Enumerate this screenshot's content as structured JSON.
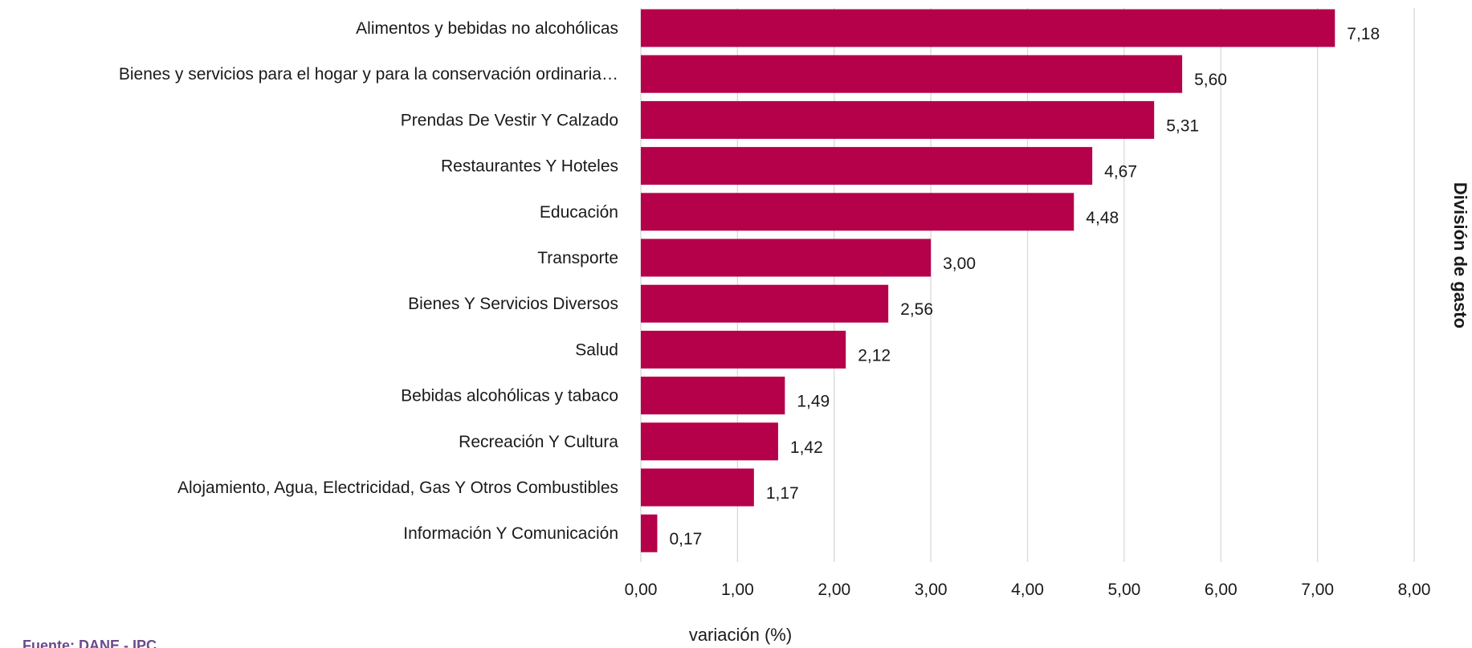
{
  "chart_data": {
    "type": "bar",
    "orientation": "horizontal",
    "categories": [
      "Alimentos y bebidas no alcohólicas",
      "Bienes y servicios para el hogar y para la conservación ordinaria…",
      "Prendas De Vestir Y Calzado",
      "Restaurantes Y Hoteles",
      "Educación",
      "Transporte",
      "Bienes Y Servicios Diversos",
      "Salud",
      "Bebidas alcohólicas y tabaco",
      "Recreación Y Cultura",
      "Alojamiento, Agua, Electricidad, Gas Y Otros Combustibles",
      "Información Y Comunicación"
    ],
    "values": [
      7.18,
      5.6,
      5.31,
      4.67,
      4.48,
      3.0,
      2.56,
      2.12,
      1.49,
      1.42,
      1.17,
      0.17
    ],
    "value_labels": [
      "7,18",
      "5,60",
      "5,31",
      "4,67",
      "4,48",
      "3,00",
      "2,56",
      "2,12",
      "1,49",
      "1,42",
      "1,17",
      "0,17"
    ],
    "xlabel": "variación (%)",
    "ylabel": "División de gasto",
    "xlim": [
      0,
      8
    ],
    "x_ticks": [
      0,
      1,
      2,
      3,
      4,
      5,
      6,
      7,
      8
    ],
    "x_tick_labels": [
      "0,00",
      "1,00",
      "2,00",
      "3,00",
      "4,00",
      "5,00",
      "6,00",
      "7,00",
      "8,00"
    ],
    "grid": true,
    "bar_color": "#b5004a",
    "grid_color": "#d9d9d9"
  },
  "source": "Fuente: DANE - IPC"
}
